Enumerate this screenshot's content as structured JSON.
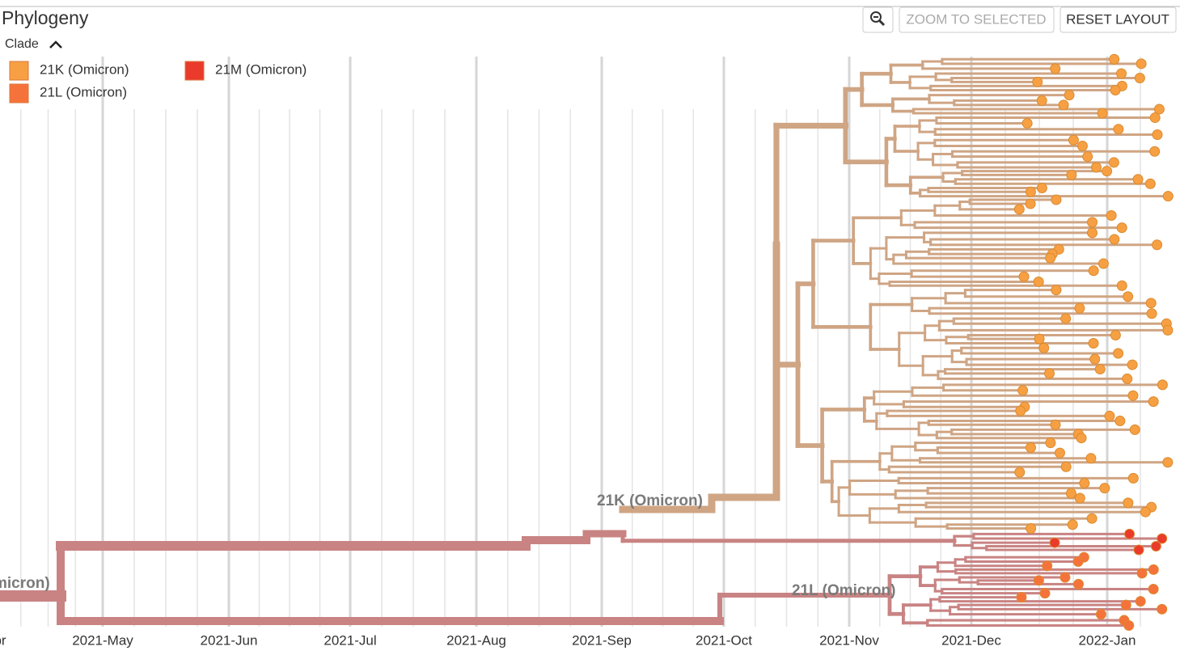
{
  "header": {
    "title": "Phylogeny",
    "legend_toggle": "Clade"
  },
  "buttons": {
    "zoom_selected": "ZOOM TO SELECTED",
    "reset_layout": "RESET LAYOUT"
  },
  "legend": [
    {
      "label": "21K (Omicron)",
      "color": "#f7a043"
    },
    {
      "label": "21L (Omicron)",
      "color": "#f5733a"
    },
    {
      "label": "21M (Omicron)",
      "color": "#ea3a2c"
    }
  ],
  "tree": {
    "clade_labels": [
      "21K (Omicron)",
      "21L (Omicron)",
      "micron)"
    ],
    "axis_labels": [
      "pr",
      "2021-May",
      "2021-Jun",
      "2021-Jul",
      "2021-Aug",
      "2021-Sep",
      "2021-Oct",
      "2021-Nov",
      "2021-Dec",
      "2022-Jan"
    ]
  }
}
